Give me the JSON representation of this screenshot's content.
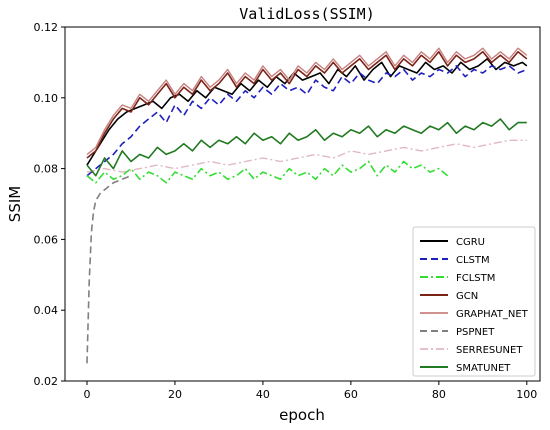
{
  "chart_data": {
    "type": "line",
    "title": "ValidLoss(SSIM)",
    "xlabel": "epoch",
    "ylabel": "SSIM",
    "xlim": [
      -5,
      103
    ],
    "ylim": [
      0.02,
      0.12
    ],
    "xticks": [
      0,
      20,
      40,
      60,
      80,
      100
    ],
    "yticks": [
      0.02,
      0.04,
      0.06,
      0.08,
      0.1,
      0.12
    ],
    "ytick_labels": [
      "0.02",
      "0.04",
      "0.06",
      "0.08",
      "0.10",
      "0.12"
    ],
    "grid": false,
    "legend_position": "lower-right",
    "series": [
      {
        "name": "CGRU",
        "color": "#000000",
        "dash": "solid",
        "width": 1.6,
        "x": [
          0,
          1,
          3,
          5,
          7,
          9,
          11,
          13,
          15,
          17,
          19,
          21,
          23,
          25,
          27,
          29,
          31,
          33,
          35,
          37,
          39,
          41,
          43,
          45,
          47,
          49,
          51,
          53,
          55,
          57,
          59,
          61,
          63,
          65,
          67,
          69,
          71,
          73,
          75,
          77,
          79,
          81,
          83,
          85,
          87,
          89,
          91,
          93,
          95,
          97,
          99,
          100
        ],
        "y": [
          0.081,
          0.083,
          0.087,
          0.091,
          0.094,
          0.096,
          0.097,
          0.098,
          0.099,
          0.097,
          0.1,
          0.101,
          0.099,
          0.102,
          0.1,
          0.103,
          0.102,
          0.101,
          0.104,
          0.102,
          0.105,
          0.103,
          0.106,
          0.104,
          0.107,
          0.105,
          0.106,
          0.107,
          0.104,
          0.108,
          0.106,
          0.109,
          0.105,
          0.108,
          0.11,
          0.106,
          0.109,
          0.108,
          0.107,
          0.11,
          0.108,
          0.109,
          0.107,
          0.11,
          0.108,
          0.109,
          0.111,
          0.108,
          0.11,
          0.109,
          0.11,
          0.109
        ]
      },
      {
        "name": "CLSTM",
        "color": "#1f1fbf",
        "dash": "7,4",
        "width": 1.6,
        "x": [
          0,
          2,
          4,
          6,
          8,
          10,
          12,
          14,
          16,
          18,
          20,
          22,
          24,
          26,
          28,
          30,
          32,
          34,
          36,
          38,
          40,
          42,
          44,
          46,
          48,
          50,
          52,
          54,
          56,
          58,
          60,
          62,
          64,
          66,
          68,
          70,
          72,
          74,
          76,
          78,
          80,
          82,
          84,
          86,
          88,
          90,
          92,
          94,
          96,
          98,
          100
        ],
        "y": [
          0.078,
          0.08,
          0.082,
          0.084,
          0.087,
          0.089,
          0.092,
          0.094,
          0.096,
          0.093,
          0.098,
          0.095,
          0.099,
          0.097,
          0.1,
          0.098,
          0.101,
          0.099,
          0.102,
          0.1,
          0.103,
          0.101,
          0.104,
          0.102,
          0.103,
          0.101,
          0.105,
          0.103,
          0.102,
          0.106,
          0.104,
          0.107,
          0.105,
          0.104,
          0.107,
          0.106,
          0.108,
          0.105,
          0.107,
          0.106,
          0.108,
          0.107,
          0.109,
          0.106,
          0.108,
          0.107,
          0.109,
          0.108,
          0.109,
          0.107,
          0.108
        ]
      },
      {
        "name": "FCLSTM",
        "color": "#33dd33",
        "dash": "8,3,2,3",
        "width": 1.6,
        "x": [
          0,
          2,
          4,
          6,
          8,
          10,
          12,
          14,
          16,
          18,
          20,
          22,
          24,
          26,
          28,
          30,
          32,
          34,
          36,
          38,
          40,
          42,
          44,
          46,
          48,
          50,
          52,
          54,
          56,
          58,
          60,
          62,
          64,
          66,
          68,
          70,
          72,
          74,
          76,
          78,
          80,
          82
        ],
        "y": [
          0.078,
          0.076,
          0.079,
          0.077,
          0.078,
          0.08,
          0.077,
          0.079,
          0.078,
          0.076,
          0.079,
          0.078,
          0.077,
          0.08,
          0.078,
          0.079,
          0.077,
          0.078,
          0.08,
          0.077,
          0.079,
          0.078,
          0.077,
          0.08,
          0.078,
          0.079,
          0.077,
          0.08,
          0.078,
          0.081,
          0.079,
          0.08,
          0.082,
          0.078,
          0.081,
          0.079,
          0.082,
          0.08,
          0.081,
          0.079,
          0.08,
          0.078
        ]
      },
      {
        "name": "GCN",
        "color": "#7a2418",
        "dash": "solid",
        "width": 1.6,
        "x": [
          0,
          2,
          4,
          6,
          8,
          10,
          12,
          14,
          16,
          18,
          20,
          22,
          24,
          26,
          28,
          30,
          32,
          34,
          36,
          38,
          40,
          42,
          44,
          46,
          48,
          50,
          52,
          54,
          56,
          58,
          60,
          62,
          64,
          66,
          68,
          70,
          72,
          74,
          76,
          78,
          80,
          82,
          84,
          86,
          88,
          90,
          92,
          94,
          96,
          98,
          100
        ],
        "y": [
          0.083,
          0.085,
          0.09,
          0.094,
          0.097,
          0.096,
          0.1,
          0.098,
          0.101,
          0.104,
          0.1,
          0.103,
          0.101,
          0.105,
          0.102,
          0.104,
          0.107,
          0.103,
          0.106,
          0.104,
          0.108,
          0.105,
          0.107,
          0.104,
          0.108,
          0.106,
          0.109,
          0.107,
          0.11,
          0.107,
          0.109,
          0.111,
          0.108,
          0.11,
          0.112,
          0.108,
          0.111,
          0.109,
          0.112,
          0.11,
          0.113,
          0.109,
          0.112,
          0.11,
          0.111,
          0.113,
          0.11,
          0.112,
          0.11,
          0.113,
          0.111
        ]
      },
      {
        "name": "GRAPHAT_NET",
        "color": "#c98080",
        "dash": "solid",
        "width": 1.4,
        "x": [
          0,
          2,
          4,
          6,
          8,
          10,
          12,
          14,
          16,
          18,
          20,
          22,
          24,
          26,
          28,
          30,
          32,
          34,
          36,
          38,
          40,
          42,
          44,
          46,
          48,
          50,
          52,
          54,
          56,
          58,
          60,
          62,
          64,
          66,
          68,
          70,
          72,
          74,
          76,
          78,
          80,
          82,
          84,
          86,
          88,
          90,
          92,
          94,
          96,
          98,
          100
        ],
        "y": [
          0.084,
          0.086,
          0.091,
          0.095,
          0.098,
          0.097,
          0.101,
          0.099,
          0.102,
          0.105,
          0.101,
          0.104,
          0.102,
          0.106,
          0.103,
          0.105,
          0.108,
          0.104,
          0.107,
          0.105,
          0.109,
          0.106,
          0.108,
          0.105,
          0.109,
          0.107,
          0.11,
          0.108,
          0.111,
          0.108,
          0.11,
          0.112,
          0.109,
          0.111,
          0.113,
          0.109,
          0.112,
          0.11,
          0.113,
          0.111,
          0.114,
          0.11,
          0.113,
          0.111,
          0.112,
          0.114,
          0.111,
          0.113,
          0.111,
          0.114,
          0.112
        ]
      },
      {
        "name": "PSPNET",
        "color": "#808080",
        "dash": "7,4",
        "width": 1.6,
        "x": [
          0,
          0.5,
          1,
          1.5,
          2,
          3,
          4,
          5,
          6,
          8,
          10
        ],
        "y": [
          0.025,
          0.048,
          0.062,
          0.068,
          0.071,
          0.073,
          0.074,
          0.075,
          0.076,
          0.077,
          0.078
        ]
      },
      {
        "name": "SERRESUNET",
        "color": "#e0b8c0",
        "dash": "8,3,2,3",
        "width": 1.4,
        "x": [
          0,
          4,
          8,
          12,
          16,
          20,
          24,
          28,
          32,
          36,
          40,
          44,
          48,
          52,
          56,
          60,
          64,
          68,
          72,
          76,
          80,
          84,
          88,
          92,
          96,
          100
        ],
        "y": [
          0.079,
          0.08,
          0.079,
          0.08,
          0.081,
          0.08,
          0.081,
          0.082,
          0.081,
          0.082,
          0.083,
          0.082,
          0.083,
          0.084,
          0.083,
          0.085,
          0.084,
          0.085,
          0.086,
          0.085,
          0.086,
          0.087,
          0.086,
          0.087,
          0.088,
          0.088
        ]
      },
      {
        "name": "SMATUNET",
        "color": "#217a21",
        "dash": "solid",
        "width": 1.6,
        "x": [
          0,
          2,
          4,
          6,
          8,
          10,
          12,
          14,
          16,
          18,
          20,
          22,
          24,
          26,
          28,
          30,
          32,
          34,
          36,
          38,
          40,
          42,
          44,
          46,
          48,
          50,
          52,
          54,
          56,
          58,
          60,
          62,
          64,
          66,
          68,
          70,
          72,
          74,
          76,
          78,
          80,
          82,
          84,
          86,
          88,
          90,
          92,
          94,
          96,
          98,
          100
        ],
        "y": [
          0.081,
          0.078,
          0.083,
          0.08,
          0.085,
          0.082,
          0.084,
          0.083,
          0.086,
          0.084,
          0.085,
          0.087,
          0.085,
          0.088,
          0.086,
          0.088,
          0.087,
          0.089,
          0.087,
          0.09,
          0.088,
          0.089,
          0.087,
          0.09,
          0.088,
          0.089,
          0.091,
          0.088,
          0.09,
          0.089,
          0.091,
          0.09,
          0.092,
          0.089,
          0.091,
          0.09,
          0.092,
          0.091,
          0.09,
          0.092,
          0.091,
          0.093,
          0.09,
          0.092,
          0.091,
          0.093,
          0.092,
          0.094,
          0.091,
          0.093,
          0.093
        ]
      }
    ]
  }
}
